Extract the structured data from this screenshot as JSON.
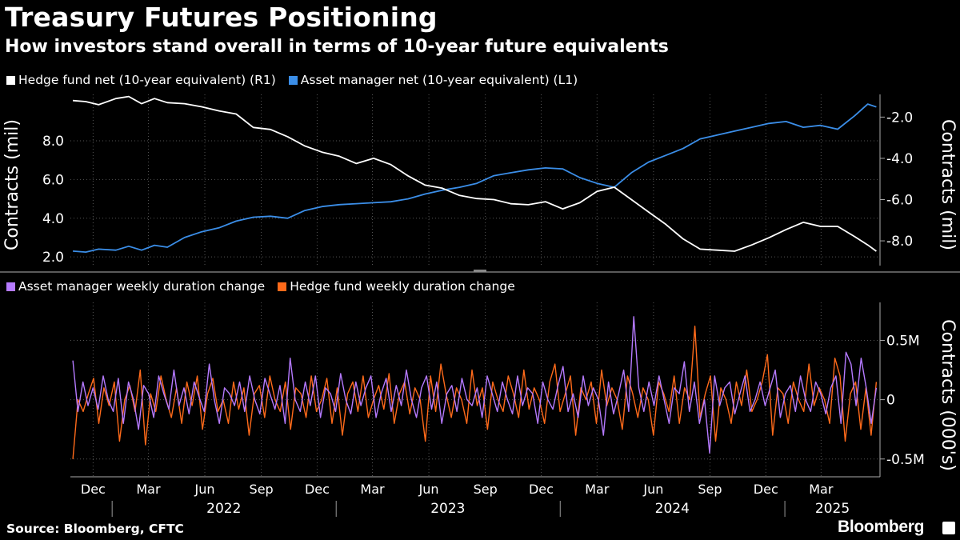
{
  "title": "Treasury Futures Positioning",
  "subtitle": "How investors stand overall in terms of 10-year future equivalents",
  "source": "Source: Bloomberg, CFTC",
  "brand": "Bloomberg",
  "colors": {
    "background": "#000000",
    "hedge_fund_net": "#ffffff",
    "asset_manager_net": "#3b8ee8",
    "asset_manager_weekly": "#b57aff",
    "hedge_fund_weekly": "#ff6a1a",
    "grid": "#555555"
  },
  "chart_data": [
    {
      "type": "line",
      "legend_placement": "top-left",
      "grid": true,
      "series": [
        {
          "name": "Hedge fund net (10-year equivalent) (R1)",
          "axis": "right",
          "points": [
            [
              "2021-10-29",
              -1.2
            ],
            [
              "2021-11-19",
              -1.25
            ],
            [
              "2021-12-10",
              -1.4
            ],
            [
              "2022-01-07",
              -1.1
            ],
            [
              "2022-01-28",
              -1.0
            ],
            [
              "2022-02-18",
              -1.35
            ],
            [
              "2022-03-11",
              -1.1
            ],
            [
              "2022-04-01",
              -1.3
            ],
            [
              "2022-04-29",
              -1.35
            ],
            [
              "2022-05-27",
              -1.5
            ],
            [
              "2022-06-24",
              -1.7
            ],
            [
              "2022-07-22",
              -1.85
            ],
            [
              "2022-08-19",
              -2.5
            ],
            [
              "2022-09-16",
              -2.6
            ],
            [
              "2022-10-14",
              -2.95
            ],
            [
              "2022-11-11",
              -3.4
            ],
            [
              "2022-12-09",
              -3.7
            ],
            [
              "2023-01-06",
              -3.9
            ],
            [
              "2023-02-03",
              -4.25
            ],
            [
              "2023-03-03",
              -4.0
            ],
            [
              "2023-03-31",
              -4.3
            ],
            [
              "2023-04-28",
              -4.85
            ],
            [
              "2023-05-26",
              -5.3
            ],
            [
              "2023-06-23",
              -5.45
            ],
            [
              "2023-07-21",
              -5.8
            ],
            [
              "2023-08-18",
              -5.95
            ],
            [
              "2023-09-15",
              -6.0
            ],
            [
              "2023-10-13",
              -6.2
            ],
            [
              "2023-11-10",
              -6.25
            ],
            [
              "2023-12-08",
              -6.1
            ],
            [
              "2024-01-05",
              -6.45
            ],
            [
              "2024-02-02",
              -6.15
            ],
            [
              "2024-03-01",
              -5.6
            ],
            [
              "2024-03-29",
              -5.4
            ],
            [
              "2024-04-26",
              -6.0
            ],
            [
              "2024-05-24",
              -6.6
            ],
            [
              "2024-06-21",
              -7.2
            ],
            [
              "2024-07-19",
              -7.9
            ],
            [
              "2024-08-16",
              -8.4
            ],
            [
              "2024-09-13",
              -8.45
            ],
            [
              "2024-10-11",
              -8.5
            ],
            [
              "2024-11-08",
              -8.2
            ],
            [
              "2024-12-06",
              -7.85
            ],
            [
              "2025-01-03",
              -7.45
            ],
            [
              "2025-01-31",
              -7.1
            ],
            [
              "2025-02-28",
              -7.3
            ],
            [
              "2025-03-28",
              -7.3
            ],
            [
              "2025-04-25",
              -7.8
            ],
            [
              "2025-05-16",
              -8.2
            ],
            [
              "2025-05-30",
              -8.5
            ]
          ]
        },
        {
          "name": "Asset manager net (10-year equivalent) (L1)",
          "axis": "left",
          "points": [
            [
              "2021-10-29",
              2.3
            ],
            [
              "2021-11-19",
              2.25
            ],
            [
              "2021-12-10",
              2.4
            ],
            [
              "2022-01-07",
              2.35
            ],
            [
              "2022-01-28",
              2.55
            ],
            [
              "2022-02-18",
              2.35
            ],
            [
              "2022-03-11",
              2.6
            ],
            [
              "2022-04-01",
              2.5
            ],
            [
              "2022-04-29",
              3.0
            ],
            [
              "2022-05-27",
              3.3
            ],
            [
              "2022-06-24",
              3.5
            ],
            [
              "2022-07-22",
              3.85
            ],
            [
              "2022-08-19",
              4.05
            ],
            [
              "2022-09-16",
              4.1
            ],
            [
              "2022-10-14",
              4.0
            ],
            [
              "2022-11-11",
              4.4
            ],
            [
              "2022-12-09",
              4.6
            ],
            [
              "2023-01-06",
              4.7
            ],
            [
              "2023-02-03",
              4.75
            ],
            [
              "2023-03-03",
              4.8
            ],
            [
              "2023-03-31",
              4.85
            ],
            [
              "2023-04-28",
              5.0
            ],
            [
              "2023-05-26",
              5.25
            ],
            [
              "2023-06-23",
              5.45
            ],
            [
              "2023-07-21",
              5.6
            ],
            [
              "2023-08-18",
              5.8
            ],
            [
              "2023-09-15",
              6.2
            ],
            [
              "2023-10-13",
              6.35
            ],
            [
              "2023-11-10",
              6.5
            ],
            [
              "2023-12-08",
              6.6
            ],
            [
              "2024-01-05",
              6.55
            ],
            [
              "2024-02-02",
              6.1
            ],
            [
              "2024-03-01",
              5.8
            ],
            [
              "2024-03-29",
              5.6
            ],
            [
              "2024-04-26",
              6.35
            ],
            [
              "2024-05-24",
              6.9
            ],
            [
              "2024-06-21",
              7.25
            ],
            [
              "2024-07-19",
              7.6
            ],
            [
              "2024-08-16",
              8.1
            ],
            [
              "2024-09-13",
              8.3
            ],
            [
              "2024-10-11",
              8.5
            ],
            [
              "2024-11-08",
              8.7
            ],
            [
              "2024-12-06",
              8.9
            ],
            [
              "2025-01-03",
              9.0
            ],
            [
              "2025-01-31",
              8.7
            ],
            [
              "2025-02-28",
              8.8
            ],
            [
              "2025-03-28",
              8.6
            ],
            [
              "2025-04-25",
              9.3
            ],
            [
              "2025-05-16",
              9.9
            ],
            [
              "2025-05-30",
              9.75
            ]
          ]
        }
      ],
      "left_axis": {
        "label": "Contracts (mil)",
        "ticks": [
          2.0,
          4.0,
          6.0,
          8.0
        ],
        "tick_labels": [
          "2.0",
          "4.0",
          "6.0",
          "8.0"
        ],
        "range": [
          1.55,
          10.4
        ]
      },
      "right_axis": {
        "label": "Contracts (mil)",
        "ticks": [
          -2.0,
          -4.0,
          -6.0,
          -8.0
        ],
        "tick_labels": [
          "-2.0",
          "-4.0",
          "-6.0",
          "-8.0"
        ],
        "range": [
          -9.2,
          -0.9
        ]
      }
    },
    {
      "type": "line",
      "legend_placement": "top-left",
      "grid": true,
      "series": [
        {
          "name": "Asset manager weekly duration change",
          "values": [
            0.33,
            -0.1,
            0.15,
            -0.05,
            0.1,
            -0.08,
            0.2,
            0.0,
            -0.1,
            0.18,
            -0.2,
            0.15,
            0.0,
            -0.25,
            0.12,
            0.05,
            -0.15,
            0.2,
            0.05,
            -0.08,
            0.25,
            -0.05,
            0.1,
            -0.12,
            0.15,
            0.02,
            -0.1,
            0.3,
            0.0,
            -0.2,
            0.1,
            0.05,
            -0.05,
            0.15,
            -0.1,
            0.2,
            0.0,
            -0.12,
            0.18,
            0.05,
            -0.08,
            0.12,
            -0.2,
            0.35,
            0.0,
            -0.1,
            0.15,
            -0.05,
            0.2,
            -0.15,
            0.1,
            0.05,
            -0.1,
            0.22,
            0.0,
            -0.12,
            0.15,
            -0.05,
            0.1,
            0.2,
            -0.15,
            0.05,
            0.18,
            -0.1,
            0.12,
            -0.05,
            0.25,
            0.0,
            -0.15,
            0.1,
            0.2,
            -0.08,
            0.15,
            -0.2,
            0.05,
            0.12,
            -0.1,
            0.18,
            0.0,
            -0.05,
            0.1,
            -0.15,
            0.2,
            0.05,
            -0.1,
            0.15,
            0.0,
            -0.12,
            0.2,
            -0.05,
            0.1,
            0.05,
            -0.2,
            0.15,
            0.0,
            -0.08,
            0.12,
            0.28,
            -0.1,
            0.05,
            -0.15,
            0.2,
            -0.05,
            0.1,
            0.0,
            -0.3,
            0.15,
            -0.12,
            0.05,
            0.25,
            -0.1,
            0.7,
            0.1,
            -0.1,
            0.15,
            -0.05,
            0.2,
            0.0,
            -0.2,
            0.1,
            0.05,
            0.32,
            -0.1,
            0.15,
            -0.2,
            0.0,
            -0.45,
            0.2,
            -0.05,
            0.1,
            0.15,
            -0.12,
            0.05,
            0.2,
            -0.1,
            0.0,
            0.15,
            -0.05,
            0.1,
            0.25,
            -0.15,
            0.05,
            0.12,
            -0.1,
            0.2,
            0.0,
            -0.1,
            0.15,
            0.05,
            -0.12,
            0.1,
            0.2,
            -0.2,
            0.4,
            0.3,
            -0.05,
            0.35,
            0.1,
            -0.2,
            0.1
          ]
        },
        {
          "name": "Hedge fund weekly duration change",
          "values": [
            -0.5,
            0.0,
            -0.1,
            0.05,
            0.18,
            -0.2,
            0.1,
            -0.05,
            0.15,
            -0.35,
            0.0,
            0.12,
            -0.1,
            0.25,
            -0.38,
            0.05,
            -0.1,
            0.2,
            0.0,
            -0.15,
            0.1,
            -0.2,
            0.15,
            -0.05,
            0.2,
            -0.25,
            0.05,
            0.18,
            -0.1,
            0.0,
            -0.2,
            0.15,
            -0.08,
            0.1,
            -0.3,
            0.05,
            0.12,
            -0.15,
            0.2,
            0.0,
            -0.1,
            0.15,
            -0.25,
            0.1,
            0.05,
            -0.15,
            0.2,
            -0.1,
            0.0,
            0.18,
            -0.2,
            0.1,
            -0.3,
            0.05,
            0.15,
            -0.1,
            0.2,
            -0.15,
            0.0,
            0.12,
            -0.08,
            0.22,
            -0.2,
            0.05,
            0.15,
            -0.12,
            0.1,
            0.0,
            -0.35,
            0.2,
            -0.1,
            0.3,
            0.05,
            -0.15,
            0.1,
            0.0,
            -0.2,
            0.25,
            -0.05,
            0.1,
            -0.25,
            0.15,
            0.0,
            -0.1,
            0.2,
            0.05,
            -0.15,
            0.25,
            -0.08,
            0.1,
            0.0,
            -0.2,
            0.15,
            0.3,
            -0.1,
            0.05,
            0.2,
            -0.3,
            0.1,
            0.0,
            0.15,
            -0.2,
            0.25,
            -0.05,
            0.1,
            0.0,
            -0.25,
            0.2,
            0.05,
            -0.15,
            0.1,
            0.0,
            -0.3,
            0.15,
            0.05,
            -0.1,
            0.2,
            -0.2,
            0.1,
            0.0,
            0.62,
            -0.15,
            0.05,
            0.2,
            -0.35,
            0.1,
            0.0,
            -0.2,
            0.15,
            -0.05,
            0.25,
            -0.1,
            0.0,
            0.15,
            0.38,
            -0.3,
            0.1,
            0.05,
            -0.2,
            0.15,
            0.0,
            -0.1,
            0.3,
            -0.05,
            0.1,
            0.0,
            -0.2,
            0.35,
            0.2,
            -0.35,
            0.05,
            0.15,
            -0.25,
            0.1,
            -0.3,
            0.15
          ]
        }
      ],
      "y_axis": {
        "label": "Contracts (000's)",
        "ticks": [
          0.5,
          0,
          -0.5
        ],
        "tick_labels": [
          "0.5M",
          "0",
          "-0.5M"
        ],
        "range": [
          -0.65,
          0.82
        ],
        "unit": "millions of contracts"
      }
    }
  ],
  "x_axis": {
    "start": "2021-10-25",
    "end": "2025-06-05",
    "month_ticks": [
      {
        "date": "2021-12-01",
        "label": "Dec"
      },
      {
        "date": "2022-03-01",
        "label": "Mar"
      },
      {
        "date": "2022-06-01",
        "label": "Jun"
      },
      {
        "date": "2022-09-01",
        "label": "Sep"
      },
      {
        "date": "2022-12-01",
        "label": "Dec"
      },
      {
        "date": "2023-03-01",
        "label": "Mar"
      },
      {
        "date": "2023-06-01",
        "label": "Jun"
      },
      {
        "date": "2023-09-01",
        "label": "Sep"
      },
      {
        "date": "2023-12-01",
        "label": "Dec"
      },
      {
        "date": "2024-03-01",
        "label": "Mar"
      },
      {
        "date": "2024-06-01",
        "label": "Jun"
      },
      {
        "date": "2024-09-01",
        "label": "Sep"
      },
      {
        "date": "2024-12-01",
        "label": "Dec"
      },
      {
        "date": "2025-03-01",
        "label": "Mar"
      }
    ],
    "years": [
      {
        "label": "2022",
        "from": "2022-01-01",
        "to": "2022-12-31"
      },
      {
        "label": "2023",
        "from": "2023-01-01",
        "to": "2023-12-31"
      },
      {
        "label": "2024",
        "from": "2024-01-01",
        "to": "2024-12-31"
      },
      {
        "label": "2025",
        "from": "2025-01-01",
        "to": "2025-06-05"
      }
    ],
    "year_boundaries": [
      "2022-01-01",
      "2023-01-01",
      "2024-01-01",
      "2025-01-01"
    ]
  },
  "weekly_range": {
    "start": "2021-10-29",
    "end": "2025-05-30"
  }
}
